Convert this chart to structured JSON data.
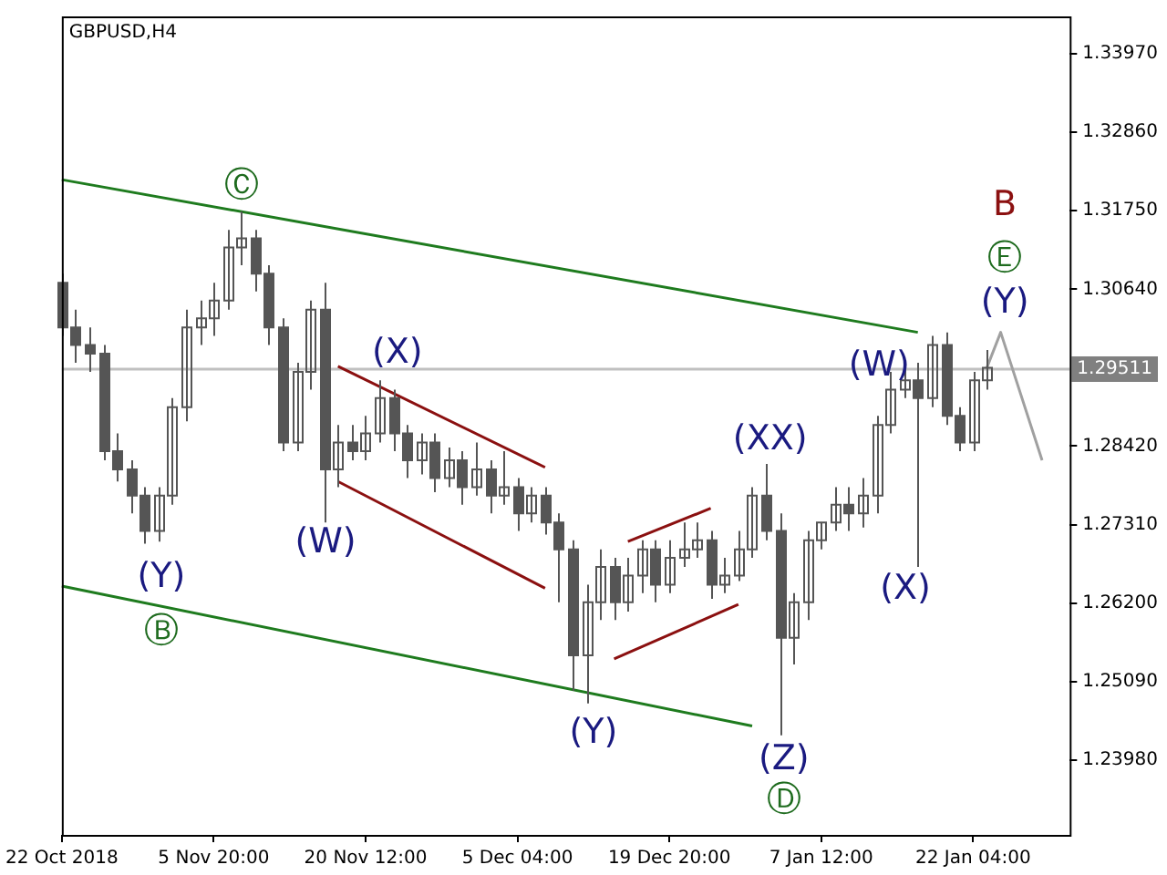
{
  "chart_data": {
    "type": "candlestick",
    "title": "GBPUSD,H4",
    "color": "#555555",
    "categories": [
      "22 Oct 2018",
      null,
      null,
      null,
      null,
      null,
      null,
      null,
      null,
      null,
      null,
      "5 Nov 20:00",
      null,
      null,
      null,
      null,
      null,
      null,
      null,
      null,
      null,
      null,
      "20 Nov 12:00",
      null,
      null,
      null,
      null,
      null,
      null,
      null,
      null,
      null,
      null,
      "5 Dec 04:00",
      null,
      null,
      null,
      null,
      null,
      null,
      null,
      null,
      null,
      null,
      "19 Dec 20:00",
      null,
      null,
      null,
      null,
      null,
      null,
      null,
      null,
      null,
      null,
      "7 Jan 12:00",
      null,
      null,
      null,
      null,
      null,
      null,
      null,
      null,
      null,
      null,
      "22 Jan 04:00",
      null,
      null,
      null,
      null,
      null,
      null,
      null
    ],
    "ohlc": [
      [
        1.3073,
        1.3086,
        1.2998,
        1.301
      ],
      [
        1.301,
        1.3035,
        1.296,
        1.2985
      ],
      [
        1.2985,
        1.301,
        1.2947,
        1.2973
      ],
      [
        1.2973,
        1.2985,
        1.2822,
        1.2835
      ],
      [
        1.2835,
        1.286,
        1.2792,
        1.2809
      ],
      [
        1.2809,
        1.2822,
        1.2747,
        1.2772
      ],
      [
        1.2772,
        1.2784,
        1.2704,
        1.2722
      ],
      [
        1.2722,
        1.2784,
        1.2707,
        1.2772
      ],
      [
        1.2772,
        1.291,
        1.2759,
        1.2897
      ],
      [
        1.2897,
        1.3035,
        1.2877,
        1.301
      ],
      [
        1.301,
        1.3048,
        1.2985,
        1.3023
      ],
      [
        1.3023,
        1.3073,
        1.2998,
        1.3048
      ],
      [
        1.3048,
        1.3148,
        1.3035,
        1.3123
      ],
      [
        1.3123,
        1.3174,
        1.3098,
        1.3136
      ],
      [
        1.3136,
        1.3148,
        1.3061,
        1.3086
      ],
      [
        1.3086,
        1.3098,
        1.2985,
        1.301
      ],
      [
        1.301,
        1.3023,
        1.2835,
        1.2847
      ],
      [
        1.2847,
        1.296,
        1.2835,
        1.2947
      ],
      [
        1.2947,
        1.3048,
        1.2922,
        1.3035
      ],
      [
        1.3035,
        1.3073,
        1.2734,
        1.2809
      ],
      [
        1.2809,
        1.2872,
        1.2784,
        1.2847
      ],
      [
        1.2847,
        1.2872,
        1.2822,
        1.2835
      ],
      [
        1.2835,
        1.2885,
        1.2822,
        1.286
      ],
      [
        1.286,
        1.2935,
        1.2847,
        1.291
      ],
      [
        1.291,
        1.2922,
        1.2835,
        1.286
      ],
      [
        1.286,
        1.2872,
        1.2797,
        1.2822
      ],
      [
        1.2822,
        1.286,
        1.2802,
        1.2847
      ],
      [
        1.2847,
        1.286,
        1.2777,
        1.2797
      ],
      [
        1.2797,
        1.284,
        1.2784,
        1.2822
      ],
      [
        1.2822,
        1.2835,
        1.2759,
        1.2784
      ],
      [
        1.2784,
        1.2847,
        1.2772,
        1.2809
      ],
      [
        1.2809,
        1.2822,
        1.2747,
        1.2772
      ],
      [
        1.2772,
        1.2835,
        1.2759,
        1.2784
      ],
      [
        1.2784,
        1.2797,
        1.2722,
        1.2747
      ],
      [
        1.2747,
        1.2784,
        1.2734,
        1.2772
      ],
      [
        1.2772,
        1.2784,
        1.2717,
        1.2734
      ],
      [
        1.2734,
        1.2747,
        1.2621,
        1.2696
      ],
      [
        1.2696,
        1.2709,
        1.2496,
        1.2546
      ],
      [
        1.2546,
        1.2646,
        1.2478,
        1.2621
      ],
      [
        1.2621,
        1.2696,
        1.2596,
        1.2671
      ],
      [
        1.2671,
        1.2684,
        1.2596,
        1.2621
      ],
      [
        1.2621,
        1.2684,
        1.2608,
        1.2659
      ],
      [
        1.2659,
        1.2709,
        1.2634,
        1.2696
      ],
      [
        1.2696,
        1.2709,
        1.2621,
        1.2646
      ],
      [
        1.2646,
        1.2709,
        1.2634,
        1.2684
      ],
      [
        1.2684,
        1.2734,
        1.2671,
        1.2696
      ],
      [
        1.2696,
        1.2734,
        1.2684,
        1.2709
      ],
      [
        1.2709,
        1.2722,
        1.2626,
        1.2646
      ],
      [
        1.2646,
        1.2684,
        1.2634,
        1.2659
      ],
      [
        1.2659,
        1.2722,
        1.2651,
        1.2696
      ],
      [
        1.2696,
        1.2784,
        1.2684,
        1.2772
      ],
      [
        1.2772,
        1.2817,
        1.2709,
        1.2722
      ],
      [
        1.2722,
        1.2747,
        1.2433,
        1.2571
      ],
      [
        1.2571,
        1.2634,
        1.2533,
        1.2621
      ],
      [
        1.2621,
        1.2722,
        1.2596,
        1.2709
      ],
      [
        1.2709,
        1.2734,
        1.2696,
        1.2734
      ],
      [
        1.2734,
        1.2784,
        1.2722,
        1.2759
      ],
      [
        1.2759,
        1.2784,
        1.2722,
        1.2747
      ],
      [
        1.2747,
        1.2797,
        1.2727,
        1.2772
      ],
      [
        1.2772,
        1.2885,
        1.2747,
        1.2872
      ],
      [
        1.2872,
        1.2947,
        1.286,
        1.2922
      ],
      [
        1.2922,
        1.296,
        1.291,
        1.2935
      ],
      [
        1.2935,
        1.296,
        1.2671,
        1.291
      ],
      [
        1.291,
        1.2998,
        1.2897,
        1.2985
      ],
      [
        1.2985,
        1.3003,
        1.2872,
        1.2885
      ],
      [
        1.2885,
        1.2897,
        1.2835,
        1.2847
      ],
      [
        1.2847,
        1.2947,
        1.2835,
        1.2935
      ],
      [
        1.2935,
        1.2978,
        1.2922,
        1.2953
      ],
      null,
      null,
      null,
      null,
      null,
      null
    ],
    "series": [
      {
        "type": "line",
        "color": "#1e7b1e",
        "values": [
          1.3219,
          null,
          null,
          null,
          null,
          null,
          null,
          null,
          null,
          null,
          null,
          null,
          null,
          null,
          null,
          null,
          null,
          null,
          null,
          null,
          null,
          null,
          null,
          null,
          null,
          null,
          null,
          null,
          null,
          null,
          null,
          null,
          null,
          null,
          null,
          null,
          null,
          null,
          null,
          null,
          null,
          null,
          null,
          null,
          null,
          null,
          null,
          null,
          null,
          null,
          null,
          null,
          null,
          null,
          null,
          null,
          null,
          null,
          null,
          null,
          null,
          null,
          1.3003,
          null,
          null,
          null,
          null,
          null,
          null,
          null,
          null,
          null,
          null,
          null
        ]
      },
      {
        "type": "line",
        "color": "#1e7b1e",
        "values": [
          1.2644,
          null,
          null,
          null,
          null,
          null,
          null,
          null,
          null,
          null,
          null,
          null,
          null,
          null,
          null,
          null,
          null,
          null,
          null,
          null,
          null,
          null,
          null,
          null,
          null,
          null,
          null,
          null,
          null,
          null,
          null,
          null,
          null,
          null,
          null,
          null,
          null,
          null,
          null,
          null,
          null,
          null,
          null,
          null,
          null,
          null,
          null,
          null,
          null,
          null,
          1.2446,
          null,
          null,
          null,
          null,
          null,
          null,
          null,
          null,
          null,
          null,
          null,
          null,
          null,
          null,
          null,
          null,
          null,
          null,
          null,
          null,
          null,
          null,
          null
        ]
      },
      {
        "type": "line",
        "color": "#8b1010",
        "values": [
          null,
          null,
          null,
          null,
          null,
          null,
          null,
          null,
          null,
          null,
          null,
          null,
          null,
          null,
          null,
          null,
          null,
          null,
          null,
          null,
          1.2955,
          null,
          null,
          null,
          null,
          null,
          null,
          null,
          null,
          null,
          null,
          null,
          null,
          null,
          null,
          1.2812,
          null,
          null,
          null,
          null,
          null,
          null,
          null,
          null,
          null,
          null,
          null,
          null,
          null,
          null,
          null,
          null,
          null,
          null,
          null,
          null,
          null,
          null,
          null,
          null,
          null,
          null,
          null,
          null,
          null,
          null,
          null,
          null,
          null,
          null,
          null,
          null,
          null,
          null
        ]
      },
      {
        "type": "line",
        "color": "#8b1010",
        "values": [
          null,
          null,
          null,
          null,
          null,
          null,
          null,
          null,
          null,
          null,
          null,
          null,
          null,
          null,
          null,
          null,
          null,
          null,
          null,
          null,
          1.2792,
          null,
          null,
          null,
          null,
          null,
          null,
          null,
          null,
          null,
          null,
          null,
          null,
          null,
          null,
          1.2641,
          null,
          null,
          null,
          null,
          null,
          null,
          null,
          null,
          null,
          null,
          null,
          null,
          null,
          null,
          null,
          null,
          null,
          null,
          null,
          null,
          null,
          null,
          null,
          null,
          null,
          null,
          null,
          null,
          null,
          null,
          null,
          null,
          null,
          null,
          null,
          null,
          null,
          null
        ]
      },
      {
        "type": "line",
        "color": "#8b1010",
        "values": [
          null,
          null,
          null,
          null,
          null,
          null,
          null,
          null,
          null,
          null,
          null,
          null,
          null,
          null,
          null,
          null,
          null,
          null,
          null,
          null,
          null,
          null,
          null,
          null,
          null,
          null,
          null,
          null,
          null,
          null,
          null,
          null,
          null,
          null,
          null,
          null,
          null,
          null,
          null,
          null,
          null,
          1.2707,
          null,
          null,
          null,
          null,
          null,
          1.2754,
          null,
          null,
          null,
          null,
          null,
          null,
          null,
          null,
          null,
          null,
          null,
          null,
          null,
          null,
          null,
          null,
          null,
          null,
          null,
          null,
          null,
          null,
          null,
          null,
          null,
          null
        ]
      },
      {
        "type": "line",
        "color": "#8b1010",
        "values": [
          null,
          null,
          null,
          null,
          null,
          null,
          null,
          null,
          null,
          null,
          null,
          null,
          null,
          null,
          null,
          null,
          null,
          null,
          null,
          null,
          null,
          null,
          null,
          null,
          null,
          null,
          null,
          null,
          null,
          null,
          null,
          null,
          null,
          null,
          null,
          null,
          null,
          null,
          null,
          null,
          1.2541,
          null,
          null,
          null,
          null,
          null,
          null,
          null,
          null,
          1.2618,
          null,
          null,
          null,
          null,
          null,
          null,
          null,
          null,
          null,
          null,
          null,
          null,
          null,
          null,
          null,
          null,
          null,
          null,
          null,
          null,
          null,
          null,
          null,
          null
        ]
      },
      {
        "type": "line",
        "color": "#a0a0a0",
        "values": [
          null,
          null,
          null,
          null,
          null,
          null,
          null,
          null,
          null,
          null,
          null,
          null,
          null,
          null,
          null,
          null,
          null,
          null,
          null,
          null,
          null,
          null,
          null,
          null,
          null,
          null,
          null,
          null,
          null,
          null,
          null,
          null,
          null,
          null,
          null,
          null,
          null,
          null,
          null,
          null,
          null,
          null,
          null,
          null,
          null,
          null,
          null,
          null,
          null,
          null,
          null,
          null,
          null,
          null,
          null,
          null,
          null,
          null,
          null,
          null,
          null,
          null,
          null,
          null,
          null,
          null,
          null,
          1.2953,
          1.3003,
          null,
          null,
          1.2822,
          null,
          null
        ]
      }
    ],
    "ylim": [
      1.2292,
      1.345
    ],
    "yticks": [
      {
        "value": 1.2398,
        "label": "1.23980"
      },
      {
        "value": 1.2509,
        "label": "1.25090"
      },
      {
        "value": 1.262,
        "label": "1.26200"
      },
      {
        "value": 1.2731,
        "label": "1.27310"
      },
      {
        "value": 1.2842,
        "label": "1.28420"
      },
      {
        "value": 1.3064,
        "label": "1.30640"
      },
      {
        "value": 1.3175,
        "label": "1.31750"
      },
      {
        "value": 1.3286,
        "label": "1.32860"
      },
      {
        "value": 1.3397,
        "label": "1.33970"
      }
    ],
    "ref_lines": [
      {
        "axis": "y",
        "value": 1.29511,
        "label": "1.29511",
        "color": "#c0c0c0"
      }
    ],
    "annotations": [
      "(Y)",
      "Ⓑ",
      "Ⓒ",
      "(W)",
      "(X)",
      "(Y)",
      "(XX)",
      "(Z)",
      "Ⓓ",
      "(W)",
      "(X)",
      "(Y)",
      "Ⓔ",
      "B"
    ],
    "grid": false,
    "legend": false
  }
}
